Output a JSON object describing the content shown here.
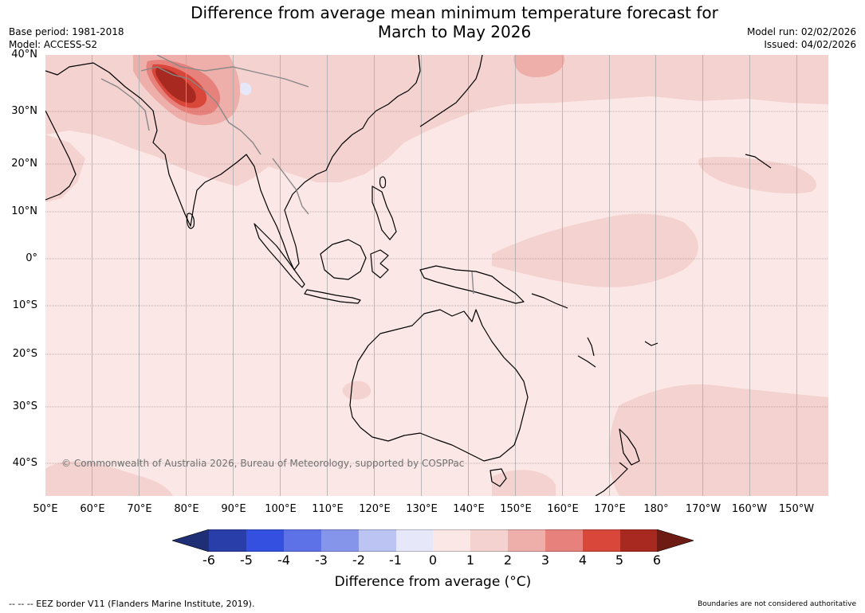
{
  "title": {
    "line1": "Difference from average mean minimum temperature forecast for",
    "line2": "March to May 2026"
  },
  "meta_left": {
    "base_period": "Base period: 1981-2018",
    "model": "Model: ACCESS-S2"
  },
  "meta_right": {
    "model_run": "Model run: 02/02/2026",
    "issued": "Issued: 04/02/2026"
  },
  "map": {
    "lat_labels": [
      "40°N",
      "30°N",
      "20°N",
      "10°N",
      "0°",
      "10°S",
      "20°S",
      "30°S",
      "40°S"
    ],
    "lon_labels": [
      "50°E",
      "60°E",
      "70°E",
      "80°E",
      "90°E",
      "100°E",
      "110°E",
      "120°E",
      "130°E",
      "140°E",
      "150°E",
      "160°E",
      "170°E",
      "180°",
      "170°W",
      "160°W",
      "150°W"
    ],
    "copyright": "© Commonwealth of Australia 2026, Bureau of Meteorology, supported by COSPPac"
  },
  "colorbar": {
    "ticks": [
      "-6",
      "-5",
      "-4",
      "-3",
      "-2",
      "-1",
      "0",
      "1",
      "2",
      "3",
      "4",
      "5",
      "6"
    ],
    "label": "Difference from average (°C)",
    "colors": {
      "under": "#1f2f75",
      "bins": [
        "#2a3eaa",
        "#3350e0",
        "#5d72e6",
        "#8595ea",
        "#bcc4f3",
        "#e6e8fa",
        "#fbe8e6",
        "#f4d2cf",
        "#eeaeaa",
        "#e6817b",
        "#d9463a",
        "#a8291f"
      ],
      "over": "#6e1b14"
    }
  },
  "footer": {
    "eez": "--  --  -- EEZ border V11 (Flanders Marine Institute, 2019).",
    "boundaries": "Boundaries are not considered authoritative"
  }
}
